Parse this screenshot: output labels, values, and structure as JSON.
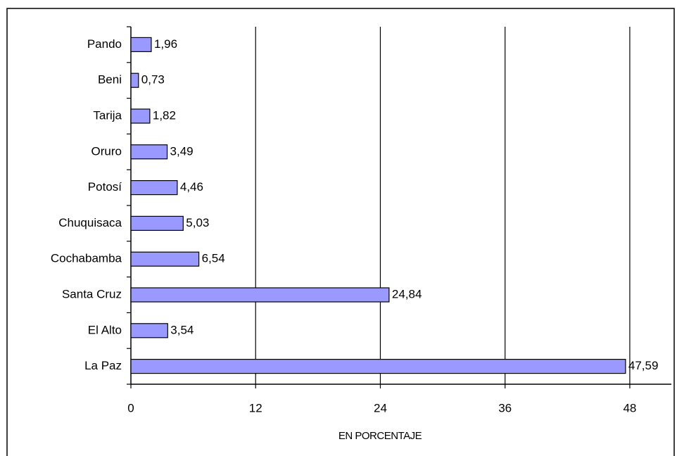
{
  "chart_data": {
    "type": "bar",
    "orientation": "horizontal",
    "categories": [
      "Pando",
      "Beni",
      "Tarija",
      "Oruro",
      "Potosí",
      "Chuquisaca",
      "Cochabamba",
      "Santa Cruz",
      "El Alto",
      "La Paz"
    ],
    "values": [
      1.96,
      0.73,
      1.82,
      3.49,
      4.46,
      5.03,
      6.54,
      24.84,
      3.54,
      47.59
    ],
    "value_labels": [
      "1,96",
      "0,73",
      "1,82",
      "3,49",
      "4,46",
      "5,03",
      "6,54",
      "24,84",
      "3,54",
      "47,59"
    ],
    "color": "#9999ff",
    "xlim": [
      0,
      52
    ],
    "xticks": [
      0,
      12,
      24,
      36,
      48
    ],
    "grid": true,
    "xlabel": "EN PORCENTAJE"
  }
}
